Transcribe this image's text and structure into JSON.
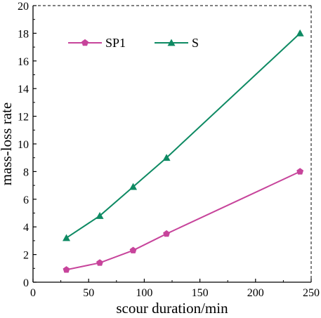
{
  "chart_data": {
    "type": "line",
    "title": "",
    "xlabel": "scour duration/min",
    "ylabel": "mass-loss rate",
    "xlim": [
      0,
      250
    ],
    "ylim": [
      0,
      20
    ],
    "xticks": [
      0,
      50,
      100,
      150,
      200,
      250
    ],
    "yticks": [
      0,
      2,
      4,
      6,
      8,
      10,
      12,
      14,
      16,
      18,
      20
    ],
    "grid": false,
    "legend_position": "top-left",
    "x": [
      30,
      60,
      90,
      120,
      240
    ],
    "series": [
      {
        "name": "SP1",
        "values": [
          0.9,
          1.4,
          2.3,
          3.5,
          8.0
        ],
        "color": "#c7449b",
        "marker": "pentagon"
      },
      {
        "name": "S",
        "values": [
          3.2,
          4.8,
          6.9,
          9.0,
          18.0
        ],
        "color": "#0e8a63",
        "marker": "triangle"
      }
    ]
  }
}
